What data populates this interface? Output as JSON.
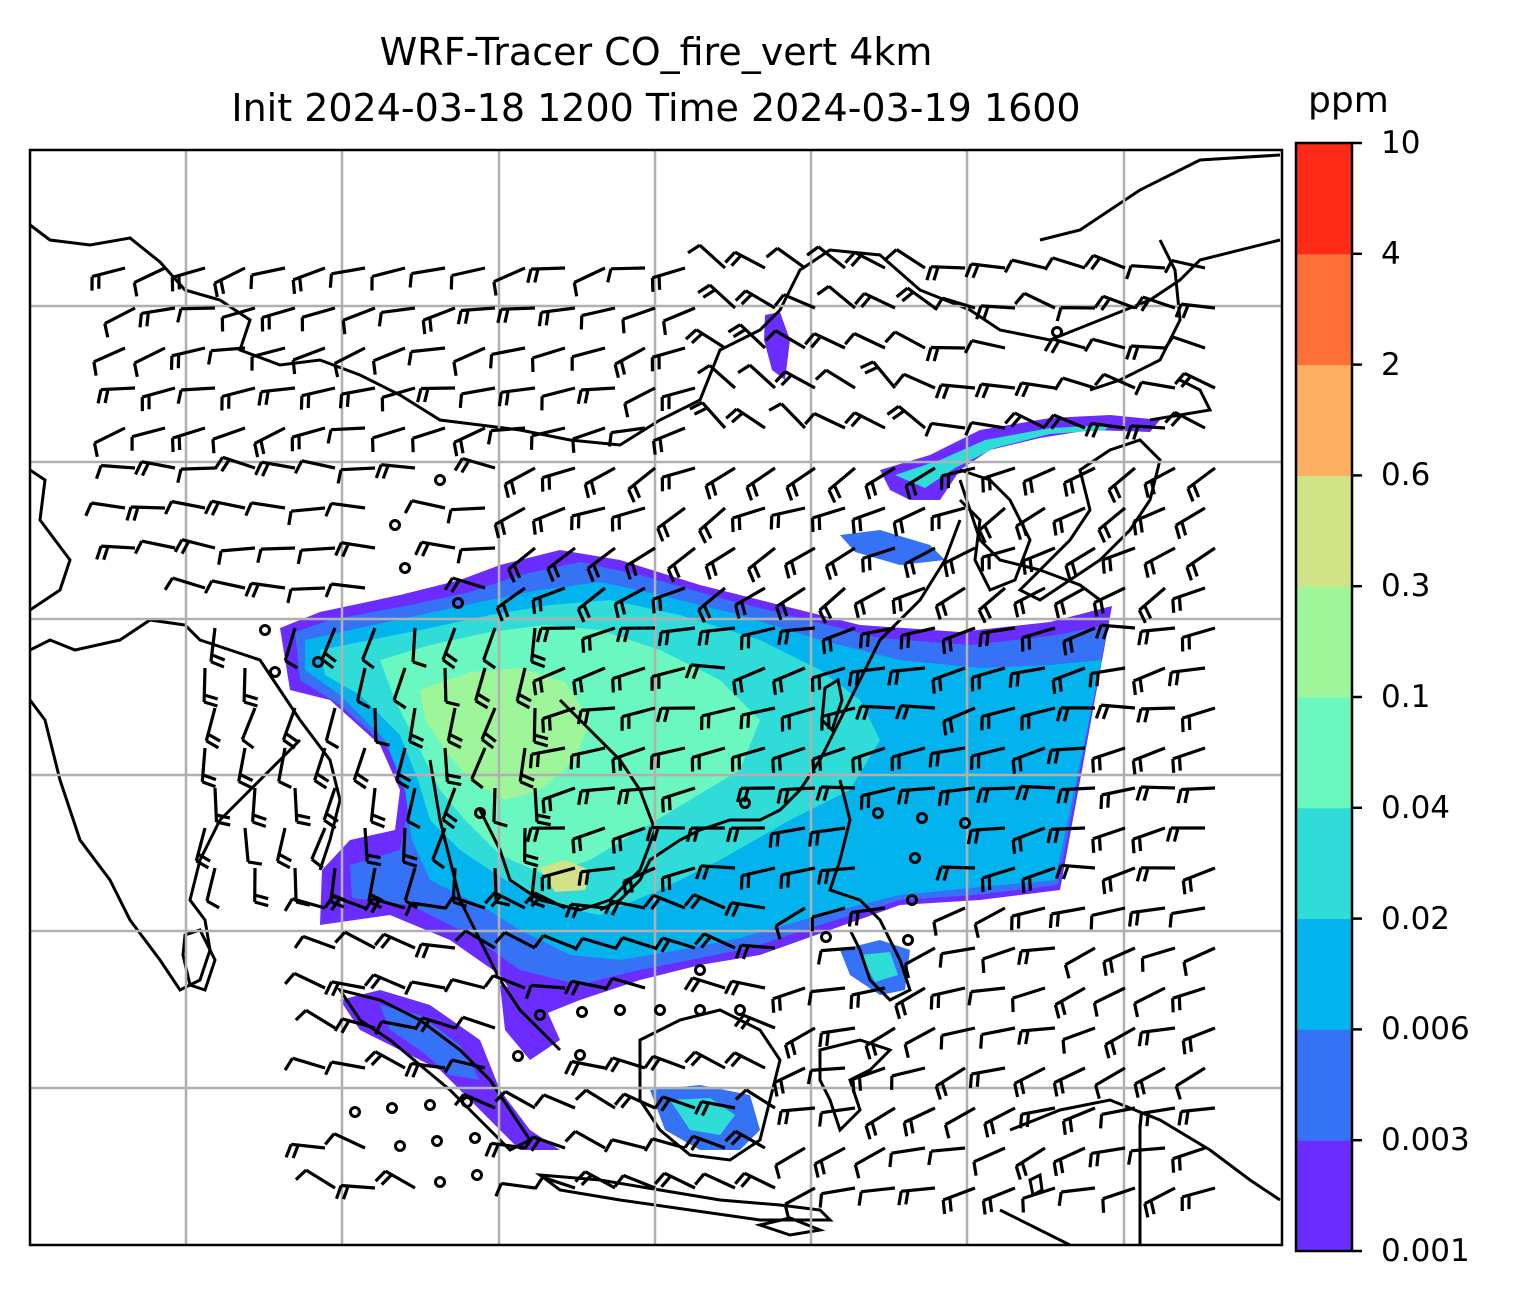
{
  "title": {
    "line1": "WRF-Tracer CO_fire_vert 4km",
    "line2": "Init 2024-03-18 1200 Time 2024-03-19 1600"
  },
  "colorbar": {
    "label": "ppm",
    "levels": [
      "0.001",
      "0.003",
      "0.006",
      "0.02",
      "0.04",
      "0.1",
      "0.3",
      "0.6",
      "2",
      "4",
      "10"
    ],
    "colors": [
      "#6a2cff",
      "#3572f5",
      "#03b3ee",
      "#2fdcd8",
      "#6af7c0",
      "#9ef59a",
      "#d1e386",
      "#fdb061",
      "#ff7038",
      "#ff2a18"
    ]
  },
  "map": {
    "colors": {
      "coast": "#000000",
      "grid": "#b0b0b0",
      "barb": "#000000"
    },
    "wind_barbs": "many barbs across domain; calm circles over southern seas"
  }
}
